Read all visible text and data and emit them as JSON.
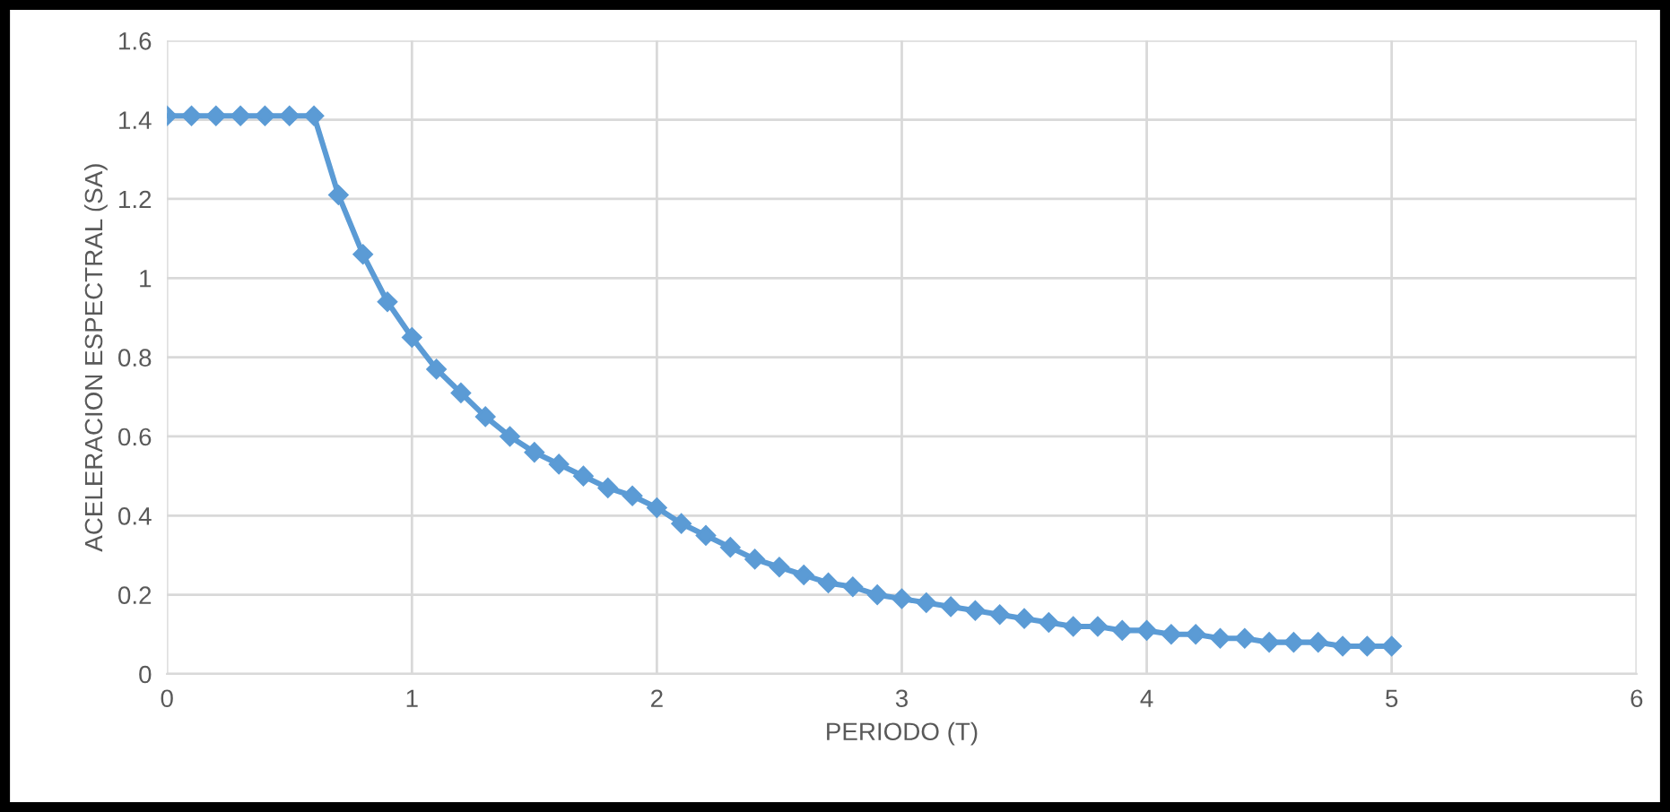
{
  "chart_data": {
    "type": "line",
    "xlabel": "PERIODO (T)",
    "ylabel": "ACELERACION ESPECTRAL (SA)",
    "x": [
      0,
      0.1,
      0.2,
      0.3,
      0.4,
      0.5,
      0.6,
      0.7,
      0.8,
      0.9,
      1,
      1.1,
      1.2,
      1.3,
      1.4,
      1.5,
      1.6,
      1.7,
      1.8,
      1.9,
      2,
      2.1,
      2.2,
      2.3,
      2.4,
      2.5,
      2.6,
      2.7,
      2.8,
      2.9,
      3,
      3.1,
      3.2,
      3.3,
      3.4,
      3.5,
      3.6,
      3.7,
      3.8,
      3.9,
      4,
      4.1,
      4.2,
      4.3,
      4.4,
      4.5,
      4.6,
      4.7,
      4.8,
      4.9,
      5
    ],
    "series": [
      {
        "color": "#5b9bd5",
        "values": [
          1.41,
          1.41,
          1.41,
          1.41,
          1.41,
          1.41,
          1.41,
          1.21,
          1.06,
          0.94,
          0.85,
          0.77,
          0.71,
          0.65,
          0.6,
          0.56,
          0.53,
          0.5,
          0.47,
          0.45,
          0.42,
          0.38,
          0.35,
          0.32,
          0.29,
          0.27,
          0.25,
          0.23,
          0.22,
          0.2,
          0.19,
          0.18,
          0.17,
          0.16,
          0.15,
          0.14,
          0.13,
          0.12,
          0.12,
          0.11,
          0.11,
          0.1,
          0.1,
          0.09,
          0.09,
          0.08,
          0.08,
          0.08,
          0.07,
          0.07,
          0.07
        ]
      }
    ],
    "xlim": [
      0,
      6
    ],
    "xticks": [
      0,
      1,
      2,
      3,
      4,
      5,
      6
    ],
    "ylim": [
      0,
      1.6
    ],
    "yticks": [
      0,
      0.2,
      0.4,
      0.6,
      0.8,
      1,
      1.2,
      1.4,
      1.6
    ],
    "grid": true,
    "marker": "diamond",
    "line_style": "solid"
  }
}
